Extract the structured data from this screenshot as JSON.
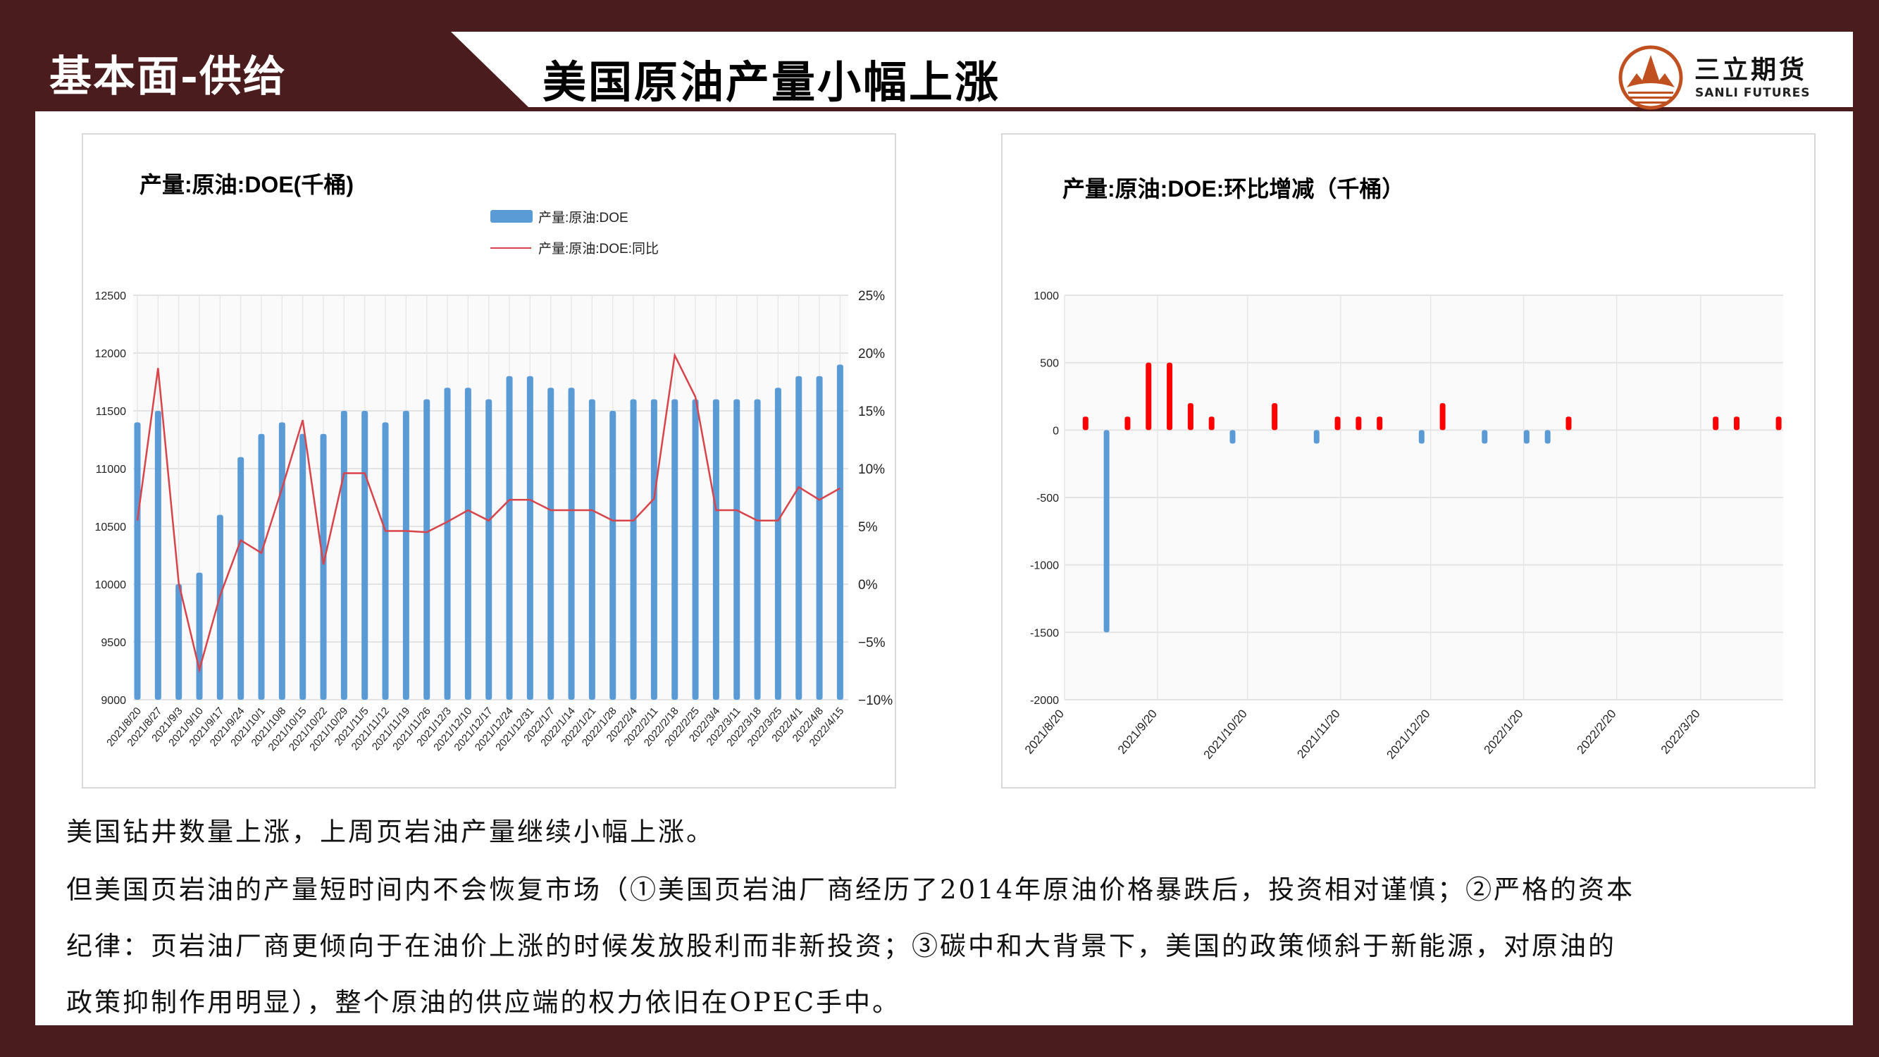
{
  "header": {
    "section": "基本面-供给",
    "title": "美国原油产量小幅上涨",
    "logo_cn": "三立期货",
    "logo_en": "SANLI FUTURES"
  },
  "colors": {
    "frame": "#4a1c1e",
    "bar": "#5b9bd5",
    "line": "#d9434a",
    "pos": "#ff0000",
    "neg": "#5b9bd5",
    "logo": "#c0501f"
  },
  "text": [
    "美国钻井数量上涨，上周页岩油产量继续小幅上涨。",
    "但美国页岩油的产量短时间内不会恢复市场（①美国页岩油厂商经历了2014年原油价格暴跌后，投资相对谨慎；②严格的资本",
    "纪律：页岩油厂商更倾向于在油价上涨的时候发放股利而非新投资；③碳中和大背景下，美国的政策倾斜于新能源，对原油的",
    "政策抑制作用明显），整个原油的供应端的权力依旧在OPEC手中。"
  ],
  "chart_data": [
    {
      "type": "bar",
      "title": "产量:原油:DOE(千桶)",
      "legend": [
        "产量:原油:DOE",
        "产量:原油:DOE:同比"
      ],
      "categories": [
        "2021/8/20",
        "2021/8/27",
        "2021/9/3",
        "2021/9/10",
        "2021/9/17",
        "2021/9/24",
        "2021/10/1",
        "2021/10/8",
        "2021/10/15",
        "2021/10/22",
        "2021/10/29",
        "2021/11/5",
        "2021/11/12",
        "2021/11/19",
        "2021/11/26",
        "2021/12/3",
        "2021/12/10",
        "2021/12/17",
        "2021/12/24",
        "2021/12/31",
        "2022/1/7",
        "2022/1/14",
        "2022/1/21",
        "2022/1/28",
        "2022/2/4",
        "2022/2/11",
        "2022/2/18",
        "2022/2/25",
        "2022/3/4",
        "2022/3/11",
        "2022/3/18",
        "2022/3/25",
        "2022/4/1",
        "2022/4/8",
        "2022/4/15"
      ],
      "series": [
        {
          "name": "产量:原油:DOE",
          "type": "bar",
          "axis": "left",
          "values": [
            11400,
            11500,
            10000,
            10100,
            10600,
            11100,
            11300,
            11400,
            11300,
            11300,
            11500,
            11500,
            11400,
            11500,
            11600,
            11700,
            11700,
            11600,
            11800,
            11800,
            11700,
            11700,
            11600,
            11500,
            11600,
            11600,
            11600,
            11600,
            11600,
            11600,
            11600,
            11700,
            11800,
            11800,
            11900
          ]
        },
        {
          "name": "产量:原油:DOE:同比",
          "type": "line",
          "axis": "right",
          "values": [
            5.5,
            18.7,
            0.1,
            -7.4,
            -1.0,
            3.8,
            2.7,
            8.3,
            14.2,
            1.7,
            9.6,
            9.6,
            4.6,
            4.6,
            4.5,
            5.4,
            6.4,
            5.5,
            7.3,
            7.3,
            6.4,
            6.4,
            6.4,
            5.5,
            5.5,
            7.4,
            19.8,
            16.2,
            6.4,
            6.4,
            5.5,
            5.5,
            8.4,
            7.3,
            8.3
          ]
        }
      ],
      "ylim": [
        9000,
        12500
      ],
      "yticks": [
        "12500",
        "12000",
        "11500",
        "11000",
        "10500",
        "10000",
        "9500",
        "9000"
      ],
      "y2lim": [
        -10,
        25
      ],
      "y2ticks": [
        "25%",
        "20%",
        "15%",
        "10%",
        "5%",
        "0%",
        "−5%",
        "−10%"
      ]
    },
    {
      "type": "bar",
      "title": "产量:原油:DOE:环比增减（千桶）",
      "dates": [
        "2021/8/27",
        "2021/9/3",
        "2021/9/10",
        "2021/9/17",
        "2021/9/24",
        "2021/10/1",
        "2021/10/8",
        "2021/10/15",
        "2021/10/22",
        "2021/10/29",
        "2021/11/5",
        "2021/11/12",
        "2021/11/19",
        "2021/11/26",
        "2021/12/3",
        "2021/12/10",
        "2021/12/17",
        "2021/12/24",
        "2021/12/31",
        "2022/1/7",
        "2022/1/14",
        "2022/1/21",
        "2022/1/28",
        "2022/2/4",
        "2022/2/11",
        "2022/2/18",
        "2022/2/25",
        "2022/3/4",
        "2022/3/11",
        "2022/3/18",
        "2022/3/25",
        "2022/4/1",
        "2022/4/8",
        "2022/4/15"
      ],
      "values": [
        100,
        -1500,
        100,
        500,
        500,
        200,
        100,
        -100,
        0,
        200,
        0,
        -100,
        100,
        100,
        100,
        0,
        -100,
        200,
        0,
        -100,
        0,
        -100,
        -100,
        100,
        0,
        0,
        0,
        0,
        0,
        0,
        100,
        100,
        0,
        100
      ],
      "ylim": [
        -2000,
        1000
      ],
      "yticks": [
        "1000",
        "500",
        "0",
        "-500",
        "-1000",
        "-1500",
        "-2000"
      ],
      "xticks": [
        "2021/8/20",
        "2021/9/20",
        "2021/10/20",
        "2021/11/20",
        "2021/12/20",
        "2022/1/20",
        "2022/2/20",
        "2022/3/20"
      ]
    }
  ]
}
